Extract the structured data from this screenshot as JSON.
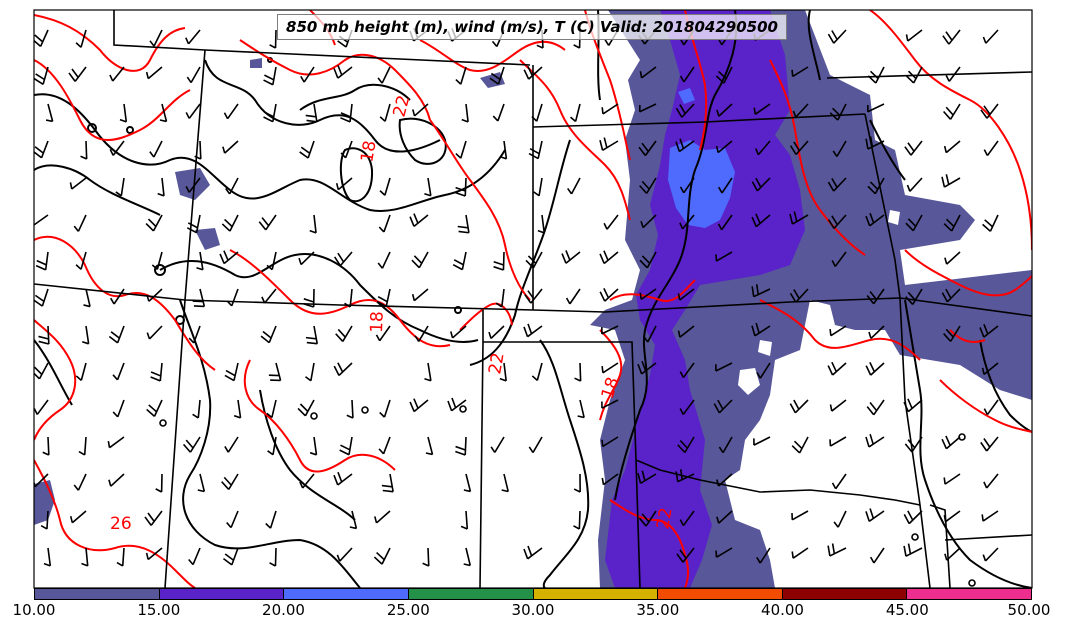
{
  "title": "850 mb height (m), wind (m/s), T (C) Valid: 201804290500",
  "colorbar": {
    "ticks": [
      "10.00",
      "15.00",
      "20.00",
      "25.00",
      "30.00",
      "35.00",
      "40.00",
      "45.00",
      "50.00"
    ],
    "colors": [
      "#57579a",
      "#5a22c9",
      "#4f6bfd",
      "#249149",
      "#d6b200",
      "#f24c00",
      "#8e0000",
      "#ee2e8f"
    ]
  },
  "temperature_labels": [
    "22",
    "18",
    "18",
    "22",
    "18",
    "26",
    "22"
  ],
  "colors": {
    "height_contour": "#000000",
    "temperature_contour": "#ff0000",
    "state_lines": "#000000",
    "wind_barbs": "#000000"
  }
}
